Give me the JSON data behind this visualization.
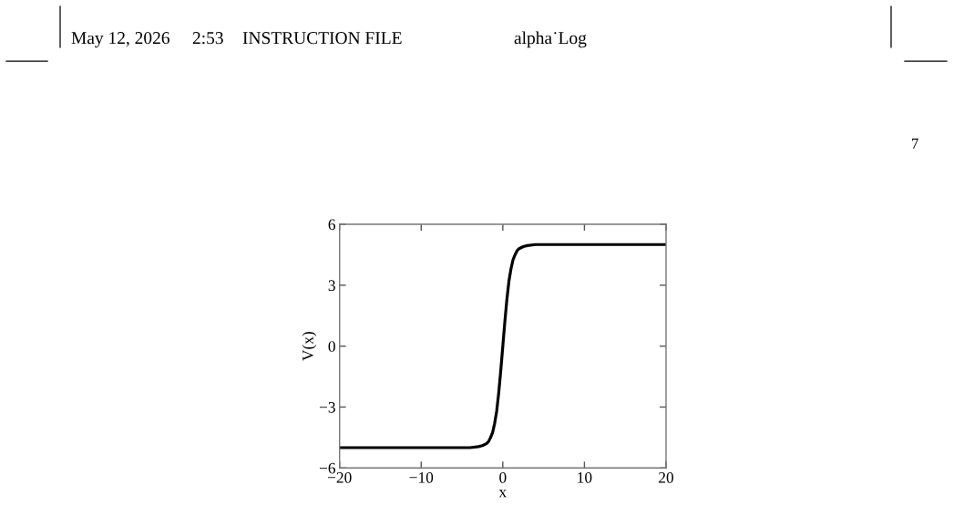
{
  "chart_data": {
    "type": "line",
    "xlabel": "x",
    "ylabel": "V(x)",
    "annotations": [
      "May 12, 2026",
      "2:53",
      "INSTRUCTION FILE",
      "alpha˙Log",
      "7"
    ],
    "series": [
      {
        "color": "#000000",
        "x": [
          -20,
          -10,
          -5,
          -4,
          -3,
          -2.5,
          -2,
          -1.75,
          -1.5,
          -1.25,
          -1,
          -0.75,
          -0.5,
          -0.25,
          0,
          0.25,
          0.5,
          0.75,
          1,
          1.25,
          1.5,
          1.75,
          2,
          2.5,
          3,
          4,
          5,
          10,
          20
        ],
        "values": [
          -5,
          -5,
          -5,
          -5,
          -4.95,
          -4.9,
          -4.8,
          -4.7,
          -4.5,
          -4.25,
          -3.8,
          -3.2,
          -2.3,
          -1.2,
          0,
          1.2,
          2.3,
          3.2,
          3.8,
          4.25,
          4.5,
          4.7,
          4.8,
          4.9,
          4.95,
          5,
          5,
          5,
          5
        ]
      }
    ],
    "xlim": [
      -20,
      20
    ],
    "ylim": [
      -6,
      6
    ],
    "xticks": [
      -20,
      -10,
      0,
      10,
      20
    ],
    "yticks": [
      -6,
      -3,
      0,
      3,
      6
    ],
    "grid": false,
    "marker": "none",
    "line_style": "solid"
  }
}
